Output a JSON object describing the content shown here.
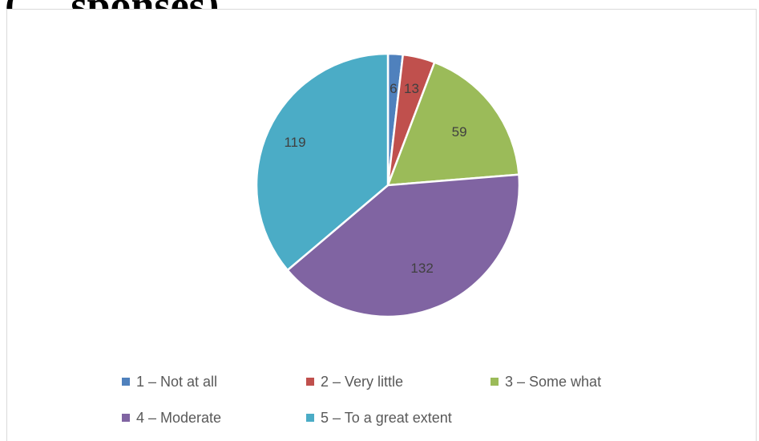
{
  "page": {
    "heading": "(… sponses)"
  },
  "chart_data": {
    "type": "pie",
    "categories": [
      "1 – Not at all",
      "2 – Very little",
      "3 – Some what",
      "4 – Moderate",
      "5 – To a great extent"
    ],
    "values": [
      6,
      13,
      59,
      132,
      119
    ],
    "data_labels": [
      "6",
      "13",
      "59",
      "132",
      "119"
    ],
    "colors": [
      "#4f81bd",
      "#c0504d",
      "#9bbb59",
      "#8064a2",
      "#4bacc6"
    ],
    "legend_position": "bottom",
    "start_angle_deg": 0,
    "direction": "clockwise"
  }
}
